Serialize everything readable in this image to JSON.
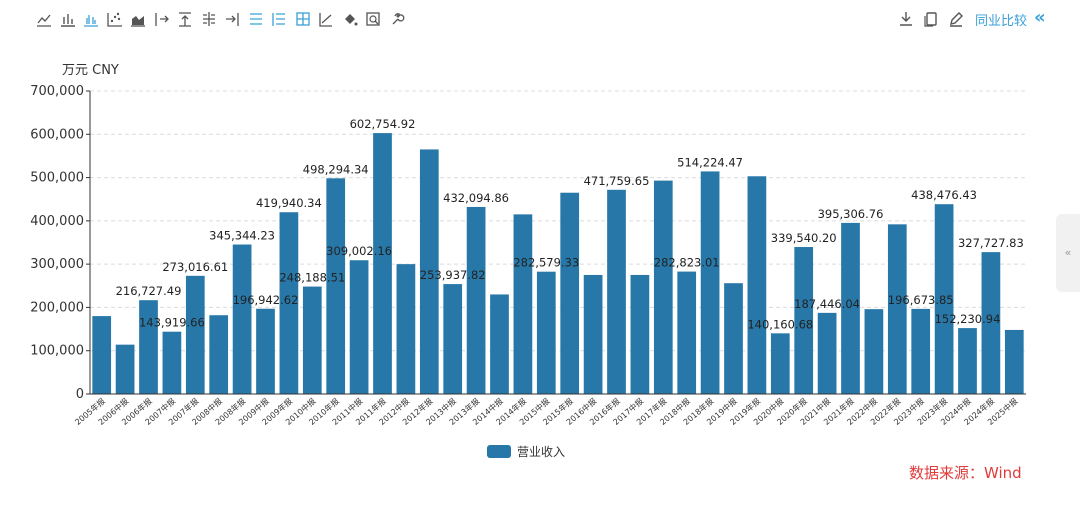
{
  "toolbar": {
    "left_icons": [
      "line-chart-icon",
      "bar-chart-icon",
      "grouped-bar-chart-icon",
      "scatter-chart-icon",
      "area-chart-icon",
      "move-right-icon",
      "align-top-icon",
      "axis-split-icon",
      "align-right-icon",
      "list-icon",
      "indent-list-icon",
      "grid-table-icon",
      "trend-line-icon",
      "paint-bucket-icon",
      "zoom-icon",
      "settings-wrench-icon"
    ],
    "right_icons": [
      "download-icon",
      "copy-icon",
      "edit-icon"
    ],
    "compare_label": "同业比较",
    "collapse_glyph": "«"
  },
  "side_tab": {
    "glyph": "«"
  },
  "legend": {
    "label": "营业收入"
  },
  "source": "数据来源：Wind",
  "colors": {
    "bar": "#2778a8",
    "accent": "#3aa0d8",
    "source": "#e03a3a"
  },
  "chart_data": {
    "type": "bar",
    "unit_label": "万元  CNY",
    "ylim": [
      0,
      700000
    ],
    "yticks": [
      "0",
      "100,000",
      "200,000",
      "300,000",
      "400,000",
      "500,000",
      "600,000",
      "700,000"
    ],
    "ytick_values": [
      0,
      100000,
      200000,
      300000,
      400000,
      500000,
      600000,
      700000
    ],
    "categories": [
      "2005年报",
      "2006中报",
      "2006年报",
      "2007中报",
      "2007年报",
      "2008中报",
      "2008年报",
      "2009中报",
      "2009年报",
      "2010中报",
      "2010年报",
      "2011中报",
      "2011年报",
      "2012中报",
      "2012年报",
      "2013中报",
      "2013年报",
      "2014中报",
      "2014年报",
      "2015中报",
      "2015年报",
      "2016中报",
      "2016年报",
      "2017中报",
      "2017年报",
      "2018中报",
      "2018年报",
      "2019中报",
      "2019年报",
      "2020中报",
      "2020年报",
      "2021中报",
      "2021年报",
      "2022中报",
      "2022年报",
      "2023中报",
      "2023年报",
      "2024中报",
      "2024年报",
      "2025中报"
    ],
    "series": [
      {
        "name": "营业收入",
        "values": [
          180000,
          114000,
          216727.49,
          143919.66,
          273016.61,
          182000,
          345344.23,
          196942.62,
          419940.34,
          248188.51,
          498294.34,
          309002.16,
          602754.92,
          300000,
          565000,
          253937.82,
          432094.86,
          230000,
          415000,
          282579.33,
          465000,
          275000,
          471759.65,
          275000,
          493000,
          282823.01,
          514224.47,
          256000,
          503000,
          140160.68,
          339540.2,
          187446.04,
          395306.76,
          196000,
          392000,
          196673.85,
          438476.43,
          152230.94,
          327727.83,
          148000
        ]
      }
    ],
    "data_labels": {
      "2": "216,727.49",
      "3": "143,919.66",
      "4": "273,016.61",
      "6": "345,344.23",
      "7": "196,942.62",
      "8": "419,940.34",
      "9": "248,188.51",
      "10": "498,294.34",
      "11": "309,002.16",
      "12": "602,754.92",
      "15": "253,937.82",
      "16": "432,094.86",
      "19": "282,579.33",
      "22": "471,759.65",
      "25": "282,823.01",
      "26": "514,224.47",
      "29": "140,160.68",
      "30": "339,540.20",
      "31": "187,446.04",
      "32": "395,306.76",
      "35": "196,673.85",
      "36": "438,476.43",
      "37": "152,230.94",
      "38": "327,727.83"
    }
  }
}
